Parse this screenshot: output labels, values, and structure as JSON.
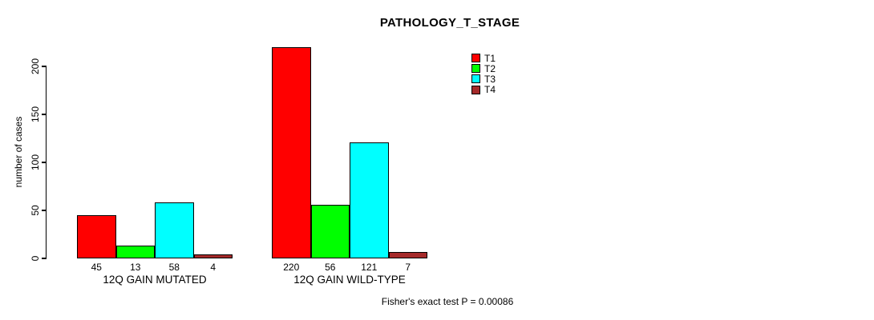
{
  "chart_data": {
    "type": "bar",
    "title": "PATHOLOGY_T_STAGE",
    "ylabel": "number of cases",
    "xlabel": "",
    "ylim": [
      0,
      220
    ],
    "yticks": [
      0,
      50,
      100,
      150,
      200
    ],
    "grid": false,
    "legend_position": "top-right",
    "categories": [
      "12Q GAIN MUTATED",
      "12Q GAIN WILD-TYPE"
    ],
    "series": [
      {
        "name": "T1",
        "color": "#ff0000",
        "values": [
          45,
          220
        ]
      },
      {
        "name": "T2",
        "color": "#00ff00",
        "values": [
          13,
          56
        ]
      },
      {
        "name": "T3",
        "color": "#00ffff",
        "values": [
          58,
          121
        ]
      },
      {
        "name": "T4",
        "color": "#a52a2a",
        "values": [
          4,
          7
        ]
      }
    ],
    "bar_value_labels": [
      [
        "45",
        "13",
        "58",
        "4"
      ],
      [
        "220",
        "56",
        "121",
        "7"
      ]
    ],
    "annotation": "Fisher's exact test P = 0.00086"
  }
}
